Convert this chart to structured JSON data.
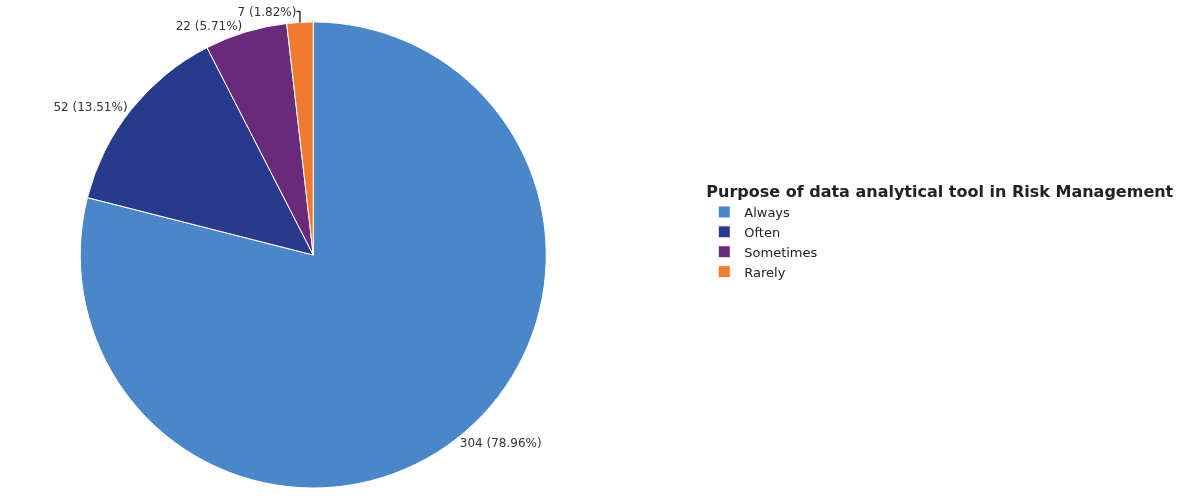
{
  "chart_data": {
    "type": "pie",
    "legend_title": "Purpose of data analytical tool in Risk Management",
    "categories": [
      "Always",
      "Often",
      "Sometimes",
      "Rarely"
    ],
    "values": [
      304,
      52,
      22,
      7
    ],
    "colors": [
      "#4a86c8",
      "#283a8c",
      "#6a2a7a",
      "#f07a30"
    ],
    "value_labels": [
      "304 (78.96%)",
      "52 (13.51%)",
      "22 (5.71%)",
      "7 (1.82%)"
    ],
    "legend": "right"
  }
}
